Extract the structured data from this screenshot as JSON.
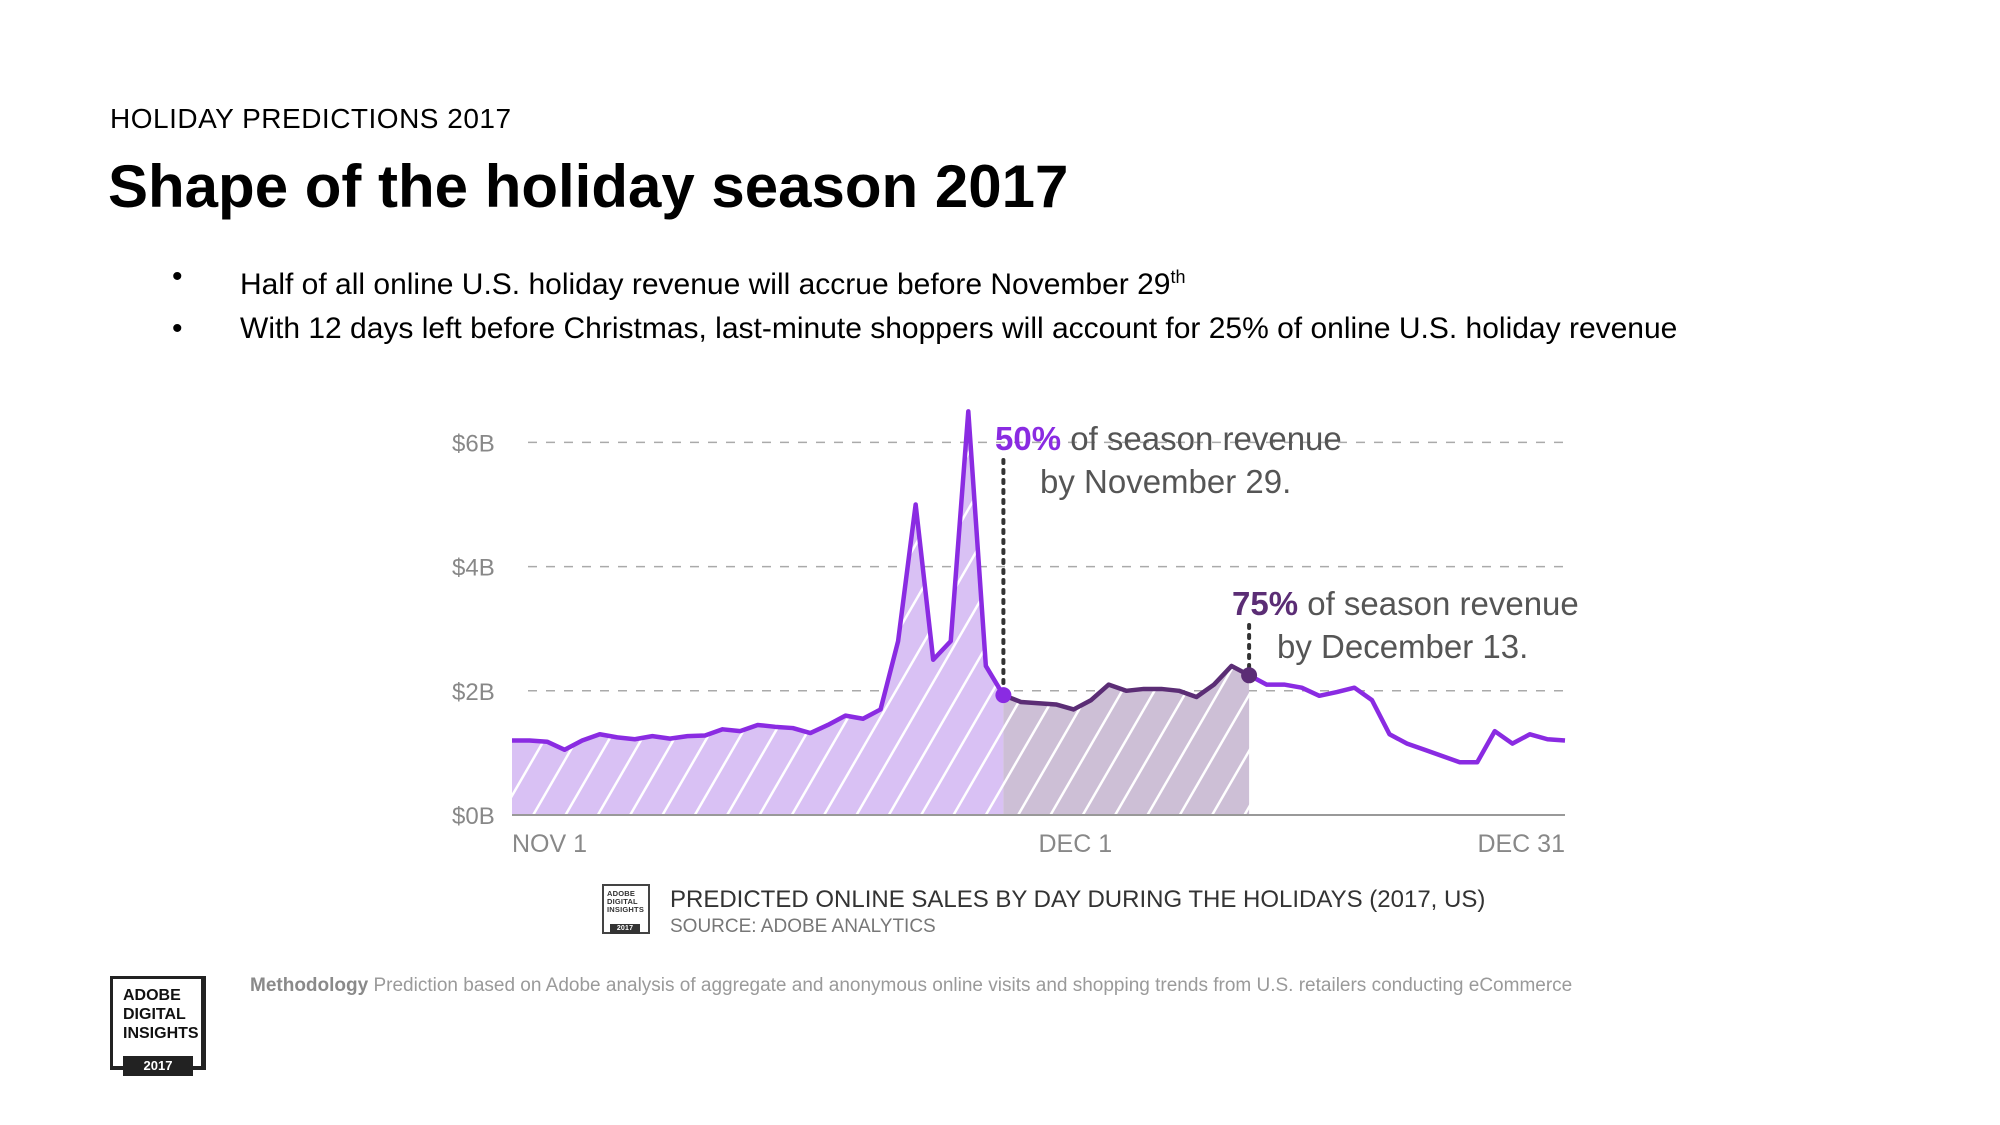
{
  "header": {
    "eyebrow": "HOLIDAY PREDICTIONS 2017",
    "title": "Shape of the holiday season 2017"
  },
  "bullets": [
    {
      "text": "Half of all online U.S. holiday revenue will accrue before November 29",
      "sup": "th"
    },
    {
      "text": "With 12 days left before Christmas, last-minute shoppers will account for 25% of online U.S. holiday revenue",
      "sup": ""
    }
  ],
  "colors": {
    "line": "#8a2be2",
    "fill_first_half": "#d9c1f4",
    "fill_second_quarter": "#cdbfd6",
    "line_dark": "#5b2d75",
    "grid": "#aaaaaa",
    "axis_label": "#888888"
  },
  "chart_data": {
    "type": "area",
    "title": "PREDICTED ONLINE SALES BY DAY DURING THE HOLIDAYS (2017, US)",
    "source": "SOURCE: ADOBE ANALYTICS",
    "ylim": [
      0,
      6.2
    ],
    "yticks": [
      {
        "value": 0,
        "label": "$0B"
      },
      {
        "value": 2,
        "label": "$2B"
      },
      {
        "value": 4,
        "label": "$4B"
      },
      {
        "value": 6,
        "label": "$6B"
      }
    ],
    "xticks": [
      {
        "day": 0,
        "label": "NOV 1"
      },
      {
        "day": 30,
        "label": "DEC 1"
      },
      {
        "day": 60,
        "label": "DEC 31"
      }
    ],
    "days": [
      0,
      1,
      2,
      3,
      4,
      5,
      6,
      7,
      8,
      9,
      10,
      11,
      12,
      13,
      14,
      15,
      16,
      17,
      18,
      19,
      20,
      21,
      22,
      23,
      24,
      25,
      26,
      27,
      28,
      29,
      30,
      31,
      32,
      33,
      34,
      35,
      36,
      37,
      38,
      39,
      40,
      41,
      42,
      43,
      44,
      45,
      46,
      47,
      48,
      49,
      50,
      51,
      52,
      53,
      54,
      55,
      56,
      57,
      58,
      59,
      60
    ],
    "values": [
      1.2,
      1.2,
      1.18,
      1.05,
      1.2,
      1.3,
      1.25,
      1.22,
      1.27,
      1.23,
      1.27,
      1.28,
      1.38,
      1.35,
      1.45,
      1.42,
      1.4,
      1.32,
      1.45,
      1.6,
      1.55,
      1.7,
      2.8,
      5.0,
      2.5,
      2.8,
      6.5,
      2.4,
      1.93,
      1.82,
      1.8,
      1.78,
      1.7,
      1.85,
      2.1,
      2.0,
      2.03,
      2.03,
      2.0,
      1.9,
      2.1,
      2.4,
      2.25,
      2.1,
      2.1,
      2.05,
      1.92,
      1.98,
      2.05,
      1.85,
      1.3,
      1.15,
      1.05,
      0.95,
      0.85,
      0.85,
      1.35,
      1.15,
      1.3,
      1.22,
      1.2
    ],
    "highlight_regions": [
      {
        "from_day": 0,
        "to_day": 28,
        "meaning": "first half of season revenue"
      },
      {
        "from_day": 28,
        "to_day": 42,
        "meaning": "through 75% of season revenue"
      }
    ],
    "annotations": [
      {
        "day": 28,
        "pct": "50%",
        "text_line1": "of season revenue",
        "text_line2": "by November 29."
      },
      {
        "day": 42,
        "pct": "75%",
        "text_line1": "of season revenue",
        "text_line2": "by December 13."
      }
    ]
  },
  "footer": {
    "badge_small_lines": [
      "ADOBE",
      "DIGITAL",
      "INSIGHTS"
    ],
    "badge_small_year": "2017",
    "methodology_label": "Methodology",
    "methodology_text": " Prediction based on Adobe analysis of aggregate and anonymous online visits and shopping trends from U.S. retailers conducting eCommerce",
    "badge_big_lines": [
      "ADOBE",
      "DIGITAL",
      "INSIGHTS"
    ],
    "badge_big_year": "2017"
  }
}
